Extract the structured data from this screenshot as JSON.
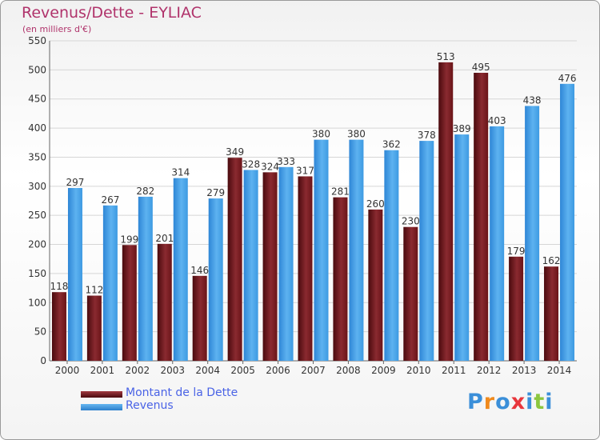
{
  "chart_data": {
    "type": "bar",
    "title": "Revenus/Dette - EYLIAC",
    "subtitle": "(en milliers d'€)",
    "categories": [
      "2000",
      "2001",
      "2002",
      "2003",
      "2004",
      "2005",
      "2006",
      "2007",
      "2008",
      "2009",
      "2010",
      "2011",
      "2012",
      "2013",
      "2014"
    ],
    "series": [
      {
        "name": "Montant de la Dette",
        "color": "#7a1a1f",
        "values": [
          118,
          112,
          199,
          201,
          146,
          349,
          324,
          317,
          281,
          260,
          230,
          513,
          495,
          179,
          162
        ]
      },
      {
        "name": "Revenus",
        "color": "#3d9ae2",
        "values": [
          297,
          267,
          282,
          314,
          279,
          328,
          333,
          380,
          380,
          362,
          378,
          389,
          403,
          438,
          476
        ]
      }
    ],
    "ylim": [
      0,
      550
    ],
    "yticks": [
      0,
      50,
      100,
      150,
      200,
      250,
      300,
      350,
      400,
      450,
      500,
      550
    ],
    "grid": true,
    "legend_position": "bottom-left"
  },
  "brand": {
    "letters": [
      "P",
      "r",
      "o",
      "x",
      "i",
      "t",
      "i"
    ],
    "colors": [
      "#3b8fd9",
      "#f08a1c",
      "#3b8fd9",
      "#e8363c",
      "#3b8fd9",
      "#8cc63f",
      "#3b8fd9"
    ]
  }
}
